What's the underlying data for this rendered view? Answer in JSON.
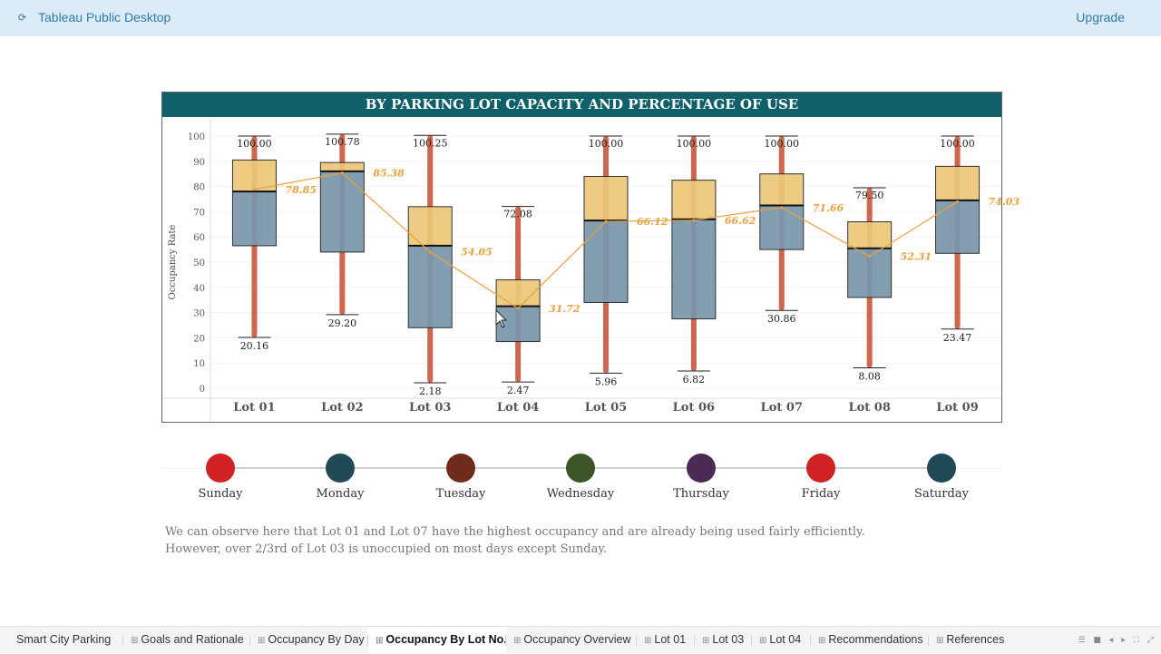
{
  "app": {
    "title": "Tableau Public Desktop",
    "upgrade_label": "Upgrade"
  },
  "chart_data": {
    "type": "box",
    "title": "BY PARKING LOT CAPACITY AND PERCENTAGE OF USE",
    "ylabel": "Occupancy Rate",
    "ylim": [
      0,
      100
    ],
    "yticks": [
      0,
      10,
      20,
      30,
      40,
      50,
      60,
      70,
      80,
      90,
      100
    ],
    "categories": [
      "Lot 01",
      "Lot 02",
      "Lot 03",
      "Lot 04",
      "Lot 05",
      "Lot 06",
      "Lot 07",
      "Lot 08",
      "Lot 09"
    ],
    "boxes": [
      {
        "min": 20.16,
        "q1": 56.5,
        "median": 78.0,
        "q3": 90.5,
        "max": 100.0
      },
      {
        "min": 29.2,
        "q1": 54.0,
        "median": 86.0,
        "q3": 89.5,
        "max": 100.78
      },
      {
        "min": 2.18,
        "q1": 24.0,
        "median": 56.5,
        "q3": 72.0,
        "max": 100.25
      },
      {
        "min": 2.47,
        "q1": 18.5,
        "median": 32.5,
        "q3": 43.0,
        "max": 72.08
      },
      {
        "min": 5.96,
        "q1": 34.0,
        "median": 66.5,
        "q3": 84.0,
        "max": 100.0
      },
      {
        "min": 6.82,
        "q1": 27.5,
        "median": 67.0,
        "q3": 82.5,
        "max": 100.0
      },
      {
        "min": 30.86,
        "q1": 55.0,
        "median": 72.5,
        "q3": 85.0,
        "max": 100.0
      },
      {
        "min": 8.08,
        "q1": 36.0,
        "median": 55.5,
        "q3": 66.0,
        "max": 79.5
      },
      {
        "min": 23.47,
        "q1": 53.5,
        "median": 74.5,
        "q3": 88.0,
        "max": 100.0
      }
    ],
    "min_labels": [
      "20.16",
      "29.20",
      "2.18",
      "2.47",
      "5.96",
      "6.82",
      "30.86",
      "8.08",
      "23.47"
    ],
    "max_labels": [
      "100.00",
      "100.78",
      "100.25",
      "72.08",
      "100.00",
      "100.00",
      "100.00",
      "79.50",
      "100.00"
    ],
    "mean_series": {
      "values": [
        78.85,
        85.38,
        54.05,
        31.72,
        66.12,
        66.62,
        71.66,
        52.31,
        74.03
      ],
      "labels": [
        "78.85",
        "85.38",
        "54.05",
        "31.72",
        "66.12",
        "66.62",
        "71.66",
        "52.31",
        "74.03"
      ],
      "color": "#e8a23c"
    },
    "colors": {
      "upper_box": "#ecc87a",
      "lower_box": "#7b97ac",
      "points": "#c8553a",
      "header": "#10606a"
    }
  },
  "days": [
    {
      "label": "Sunday",
      "color": "#d02224"
    },
    {
      "label": "Monday",
      "color": "#1f4a56"
    },
    {
      "label": "Tuesday",
      "color": "#6e2a1a"
    },
    {
      "label": "Wednesday",
      "color": "#3b5428"
    },
    {
      "label": "Thursday",
      "color": "#4a2a52"
    },
    {
      "label": "Friday",
      "color": "#d02224"
    },
    {
      "label": "Saturday",
      "color": "#1f4a56"
    }
  ],
  "note": {
    "line1": "We can observe here that Lot 01 and Lot 07 have the highest occupancy and are already being used fairly efficiently.",
    "line2": "However, over 2/3rd of Lot 03 is unoccupied on most days except Sunday."
  },
  "tabs": [
    {
      "label": "Smart City Parking",
      "icon": "dashboard-icon"
    },
    {
      "label": "Goals and Rationale",
      "icon": "dashboard-icon"
    },
    {
      "label": "Occupancy By Day",
      "icon": "dashboard-icon"
    },
    {
      "label": "Occupancy By Lot No.",
      "icon": "dashboard-icon"
    },
    {
      "label": "Occupancy Overview",
      "icon": "dashboard-icon"
    },
    {
      "label": "Lot 01",
      "icon": "dashboard-icon"
    },
    {
      "label": "Lot 03",
      "icon": "dashboard-icon"
    },
    {
      "label": "Lot 04",
      "icon": "dashboard-icon"
    },
    {
      "label": "Recommendations",
      "icon": "dashboard-icon"
    },
    {
      "label": "References",
      "icon": "dashboard-icon"
    }
  ],
  "active_tab": "Occupancy By Lot No."
}
